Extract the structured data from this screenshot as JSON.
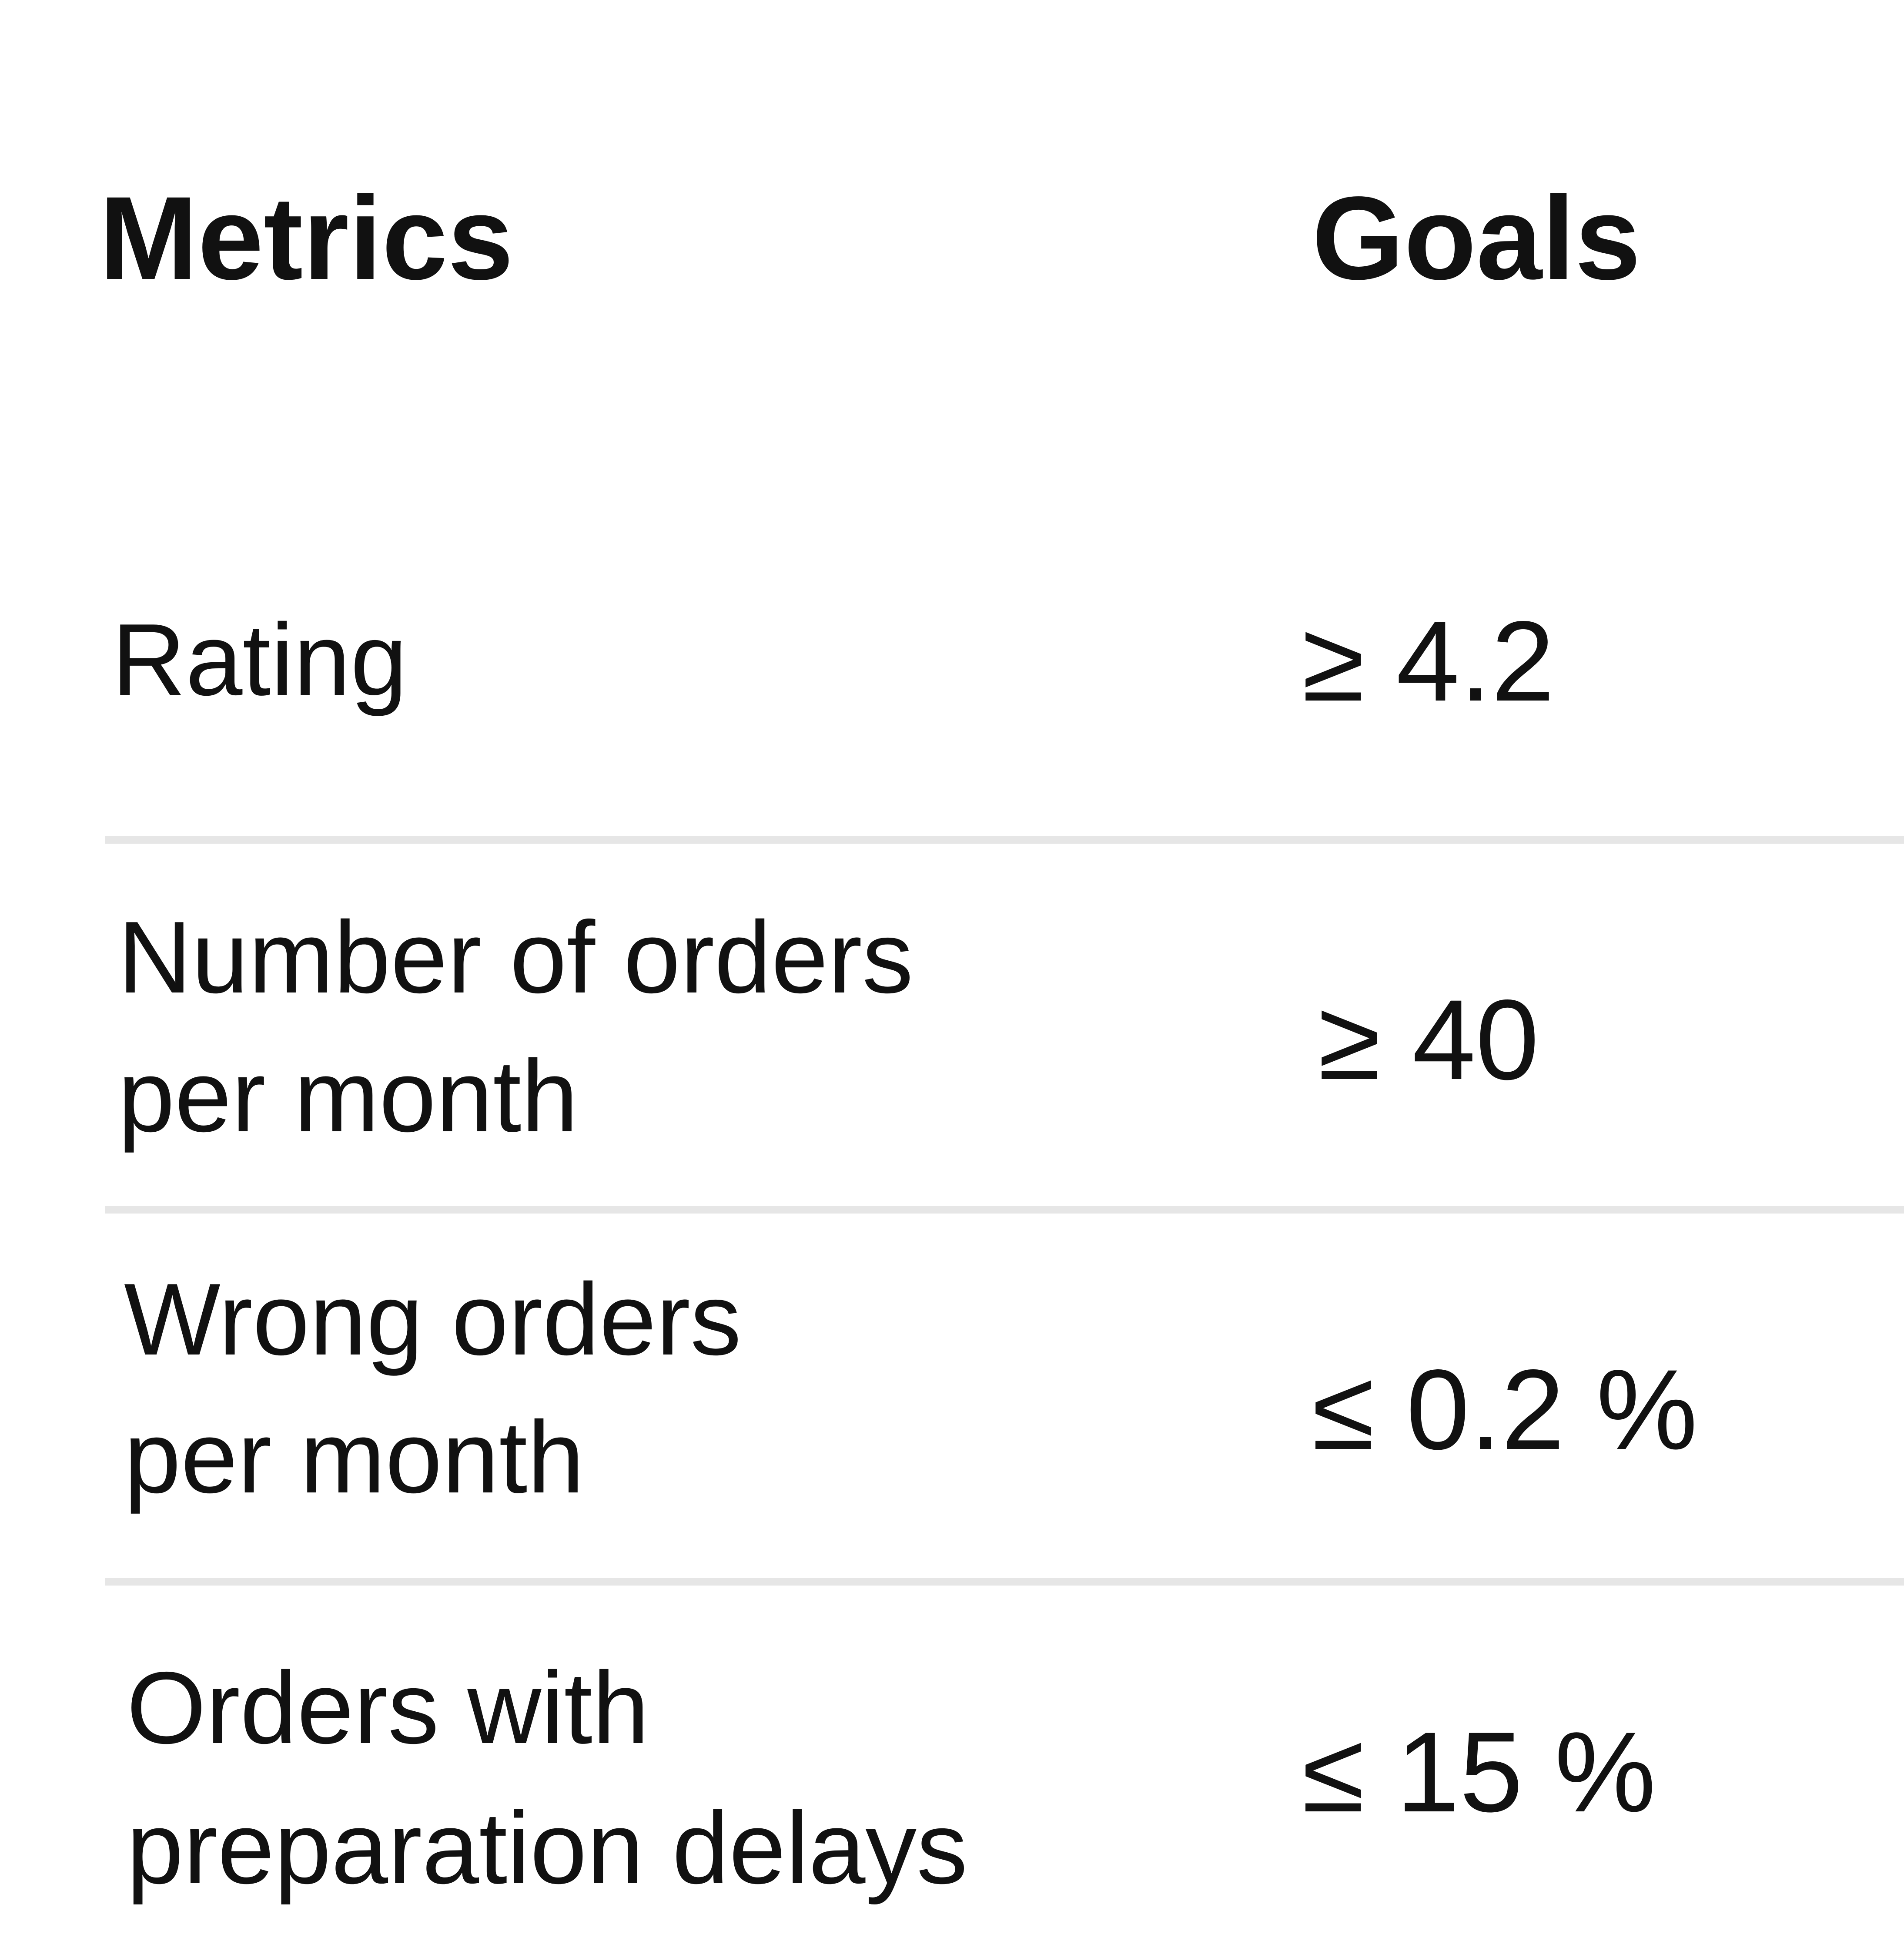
{
  "table": {
    "header": [
      "Metrics",
      "Goals"
    ],
    "rows": [
      {
        "metric": [
          "Rating"
        ],
        "goal": "≥ 4.2"
      },
      {
        "metric": [
          "Number of orders",
          "per month"
        ],
        "goal": "≥ 40"
      },
      {
        "metric": [
          "Wrong orders",
          "per month"
        ],
        "goal": "≤ 0.2 %"
      },
      {
        "metric": [
          "Orders with",
          "preparation delays"
        ],
        "goal": "≤ 15 %"
      }
    ]
  }
}
